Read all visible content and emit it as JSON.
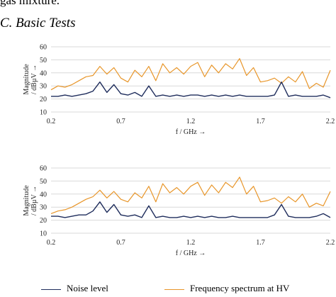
{
  "page": {
    "top_text": "gas mixture.",
    "heading": "C.  Basic Tests"
  },
  "colors": {
    "noise": "#1f2d5c",
    "spectrum": "#e8962a",
    "grid": "#d9d9d9"
  },
  "legend": {
    "noise": "Noise level",
    "spectrum": "Frequency spectrum at HV"
  },
  "chart_data": [
    {
      "type": "line",
      "xlabel": "f / GHz →",
      "ylabel": "Magnitude / dBµV →",
      "xlim": [
        0.2,
        2.2
      ],
      "ylim": [
        10,
        60
      ],
      "xticks": [
        "0.2",
        "0.7",
        "1.2",
        "1.7",
        "2.2"
      ],
      "yticks": [
        "10",
        "20",
        "30",
        "40",
        "50",
        "60"
      ],
      "grid": true,
      "x": [
        0.2,
        0.25,
        0.3,
        0.35,
        0.4,
        0.45,
        0.5,
        0.55,
        0.6,
        0.65,
        0.7,
        0.75,
        0.8,
        0.85,
        0.9,
        0.95,
        1.0,
        1.05,
        1.1,
        1.15,
        1.2,
        1.25,
        1.3,
        1.35,
        1.4,
        1.45,
        1.5,
        1.55,
        1.6,
        1.65,
        1.7,
        1.75,
        1.8,
        1.85,
        1.9,
        1.95,
        2.0,
        2.05,
        2.1,
        2.15,
        2.2
      ],
      "series": [
        {
          "name": "Noise level",
          "values": [
            22,
            22,
            23,
            22,
            23,
            24,
            26,
            33,
            25,
            31,
            24,
            23,
            25,
            22,
            30,
            22,
            23,
            22,
            23,
            22,
            23,
            23,
            22,
            23,
            22,
            23,
            22,
            23,
            22,
            22,
            22,
            22,
            23,
            33,
            22,
            23,
            22,
            22,
            22,
            23,
            21
          ]
        },
        {
          "name": "Frequency spectrum at HV",
          "values": [
            27,
            30,
            29,
            31,
            34,
            37,
            38,
            45,
            39,
            44,
            36,
            33,
            42,
            37,
            45,
            34,
            47,
            40,
            44,
            39,
            45,
            48,
            37,
            46,
            40,
            47,
            43,
            51,
            38,
            44,
            33,
            34,
            36,
            32,
            37,
            33,
            41,
            28,
            32,
            29,
            42
          ]
        }
      ]
    },
    {
      "type": "line",
      "xlabel": "f / GHz →",
      "ylabel": "Magnitude / dBµV →",
      "xlim": [
        0.2,
        2.2
      ],
      "ylim": [
        10,
        60
      ],
      "xticks": [
        "0.2",
        "0.7",
        "1.2",
        "1.7",
        "2.2"
      ],
      "yticks": [
        "10",
        "20",
        "30",
        "40",
        "50",
        "60"
      ],
      "grid": true,
      "x": [
        0.2,
        0.25,
        0.3,
        0.35,
        0.4,
        0.45,
        0.5,
        0.55,
        0.6,
        0.65,
        0.7,
        0.75,
        0.8,
        0.85,
        0.9,
        0.95,
        1.0,
        1.05,
        1.1,
        1.15,
        1.2,
        1.25,
        1.3,
        1.35,
        1.4,
        1.45,
        1.5,
        1.55,
        1.6,
        1.65,
        1.7,
        1.75,
        1.8,
        1.85,
        1.9,
        1.95,
        2.0,
        2.05,
        2.1,
        2.15,
        2.2
      ],
      "series": [
        {
          "name": "Noise level",
          "values": [
            23,
            23,
            22,
            23,
            24,
            24,
            27,
            34,
            26,
            32,
            24,
            23,
            24,
            22,
            31,
            22,
            23,
            22,
            22,
            23,
            22,
            23,
            22,
            23,
            22,
            22,
            23,
            22,
            22,
            22,
            22,
            22,
            24,
            32,
            23,
            22,
            22,
            22,
            23,
            25,
            22
          ]
        },
        {
          "name": "Frequency spectrum at HV",
          "values": [
            25,
            27,
            28,
            30,
            33,
            36,
            38,
            43,
            37,
            42,
            36,
            34,
            41,
            37,
            46,
            34,
            48,
            41,
            45,
            40,
            46,
            49,
            39,
            47,
            41,
            49,
            45,
            53,
            40,
            46,
            34,
            35,
            37,
            33,
            38,
            34,
            40,
            30,
            33,
            31,
            42
          ]
        }
      ]
    }
  ]
}
